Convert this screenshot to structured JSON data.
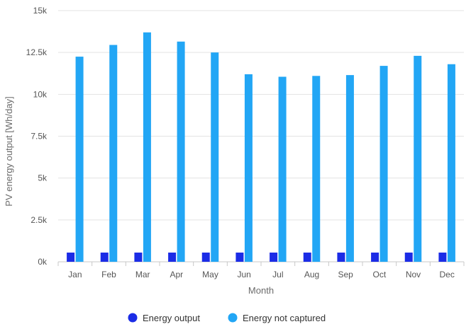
{
  "chart_data": {
    "type": "bar",
    "title": "",
    "xlabel": "Month",
    "ylabel": "PV energy output [Wh/day]",
    "categories": [
      "Jan",
      "Feb",
      "Mar",
      "Apr",
      "May",
      "Jun",
      "Jul",
      "Aug",
      "Sep",
      "Oct",
      "Nov",
      "Dec"
    ],
    "series": [
      {
        "name": "Energy output",
        "color": "#1b2ce6",
        "values": [
          550,
          550,
          550,
          550,
          550,
          550,
          550,
          550,
          550,
          550,
          550,
          550
        ]
      },
      {
        "name": "Energy not captured",
        "color": "#22a6f5",
        "values": [
          12250,
          12950,
          13700,
          13150,
          12500,
          11200,
          11050,
          11100,
          11150,
          11700,
          12300,
          11800
        ]
      }
    ],
    "ylim": [
      0,
      15000
    ],
    "yticks": [
      0,
      2500,
      5000,
      7500,
      10000,
      12500,
      15000
    ],
    "ytick_labels": [
      "0k",
      "2.5k",
      "5k",
      "7.5k",
      "10k",
      "12.5k",
      "15k"
    ],
    "grid": true,
    "legend_position": "bottom"
  }
}
